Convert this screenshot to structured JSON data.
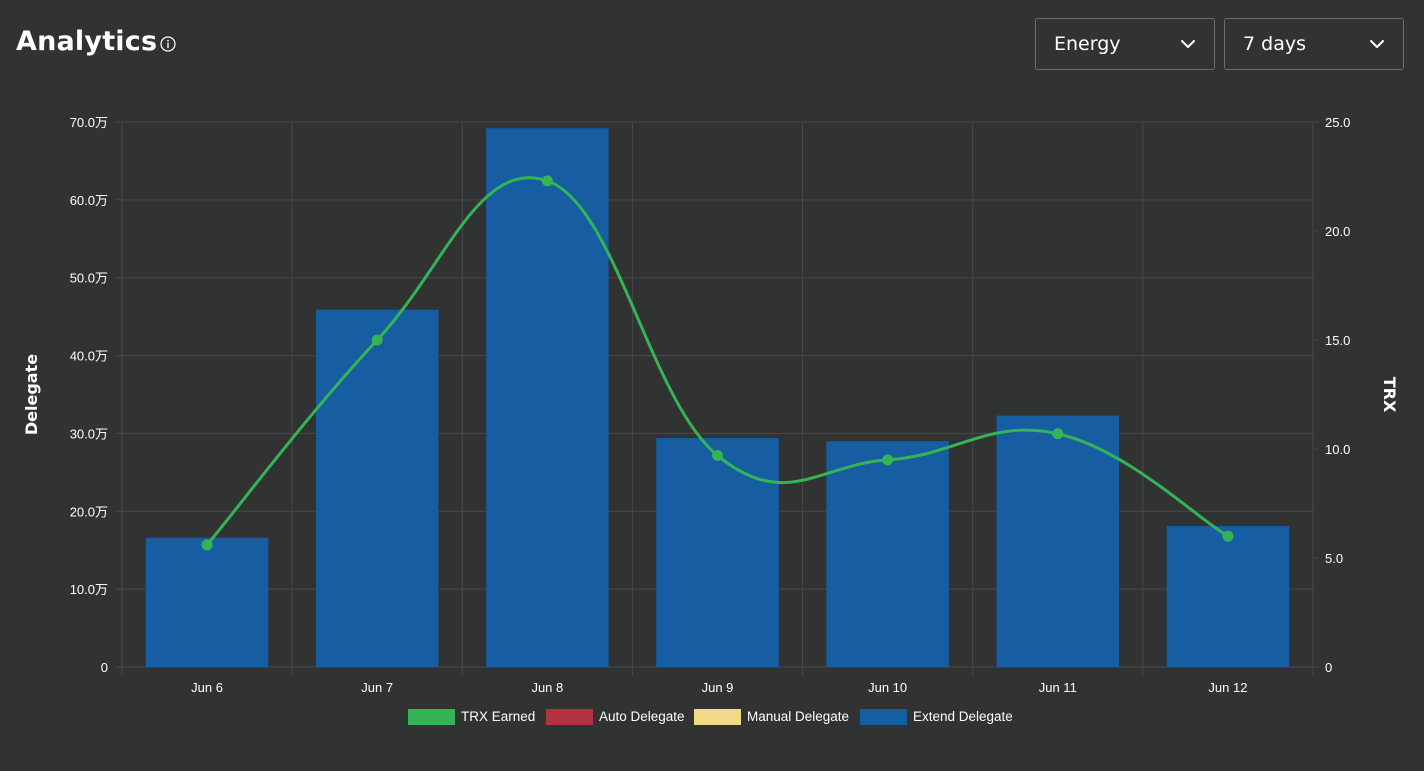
{
  "header": {
    "title": "Analytics",
    "info_icon": "info-circle-icon",
    "resource_select": {
      "value": "Energy",
      "icon": "chevron-down-icon"
    },
    "period_select": {
      "value": "7 days",
      "icon": "chevron-down-icon"
    }
  },
  "colors": {
    "background": "#303331",
    "bar": "#165da1",
    "line": "#34b457",
    "grid": "#474a48",
    "legend_trx": "#34b457",
    "legend_auto": "#b3323f",
    "legend_manual": "#f5d98b",
    "legend_extend": "#165da1"
  },
  "chart_data": {
    "type": "bar",
    "categories": [
      "Jun 6",
      "Jun 7",
      "Jun 8",
      "Jun 9",
      "Jun 10",
      "Jun 11",
      "Jun 12"
    ],
    "y_left": {
      "label": "Delegate",
      "ticks": [
        "0",
        "10.0万",
        "20.0万",
        "30.0万",
        "40.0万",
        "50.0万",
        "60.0万",
        "70.0万"
      ],
      "ylim": [
        0,
        700000
      ]
    },
    "y_right": {
      "label": "TRX",
      "ticks": [
        "0",
        "5.0",
        "10.0",
        "15.0",
        "20.0",
        "25.0"
      ],
      "ylim": [
        0,
        25
      ]
    },
    "series": [
      {
        "name": "TRX Earned",
        "type": "line",
        "axis": "right",
        "values": [
          5.6,
          15.0,
          22.3,
          9.7,
          9.5,
          10.7,
          6.0
        ]
      },
      {
        "name": "Auto Delegate",
        "type": "bar",
        "axis": "left",
        "values": [
          0,
          0,
          0,
          0,
          0,
          0,
          0
        ]
      },
      {
        "name": "Manual Delegate",
        "type": "bar",
        "axis": "left",
        "values": [
          0,
          0,
          0,
          0,
          0,
          0,
          0
        ]
      },
      {
        "name": "Extend Delegate",
        "type": "bar",
        "axis": "left",
        "values": [
          166000,
          459000,
          692000,
          294000,
          290000,
          323000,
          181000
        ]
      }
    ],
    "grid": true,
    "legend": [
      "TRX Earned",
      "Auto Delegate",
      "Manual Delegate",
      "Extend Delegate"
    ],
    "legend_position": "bottom"
  }
}
